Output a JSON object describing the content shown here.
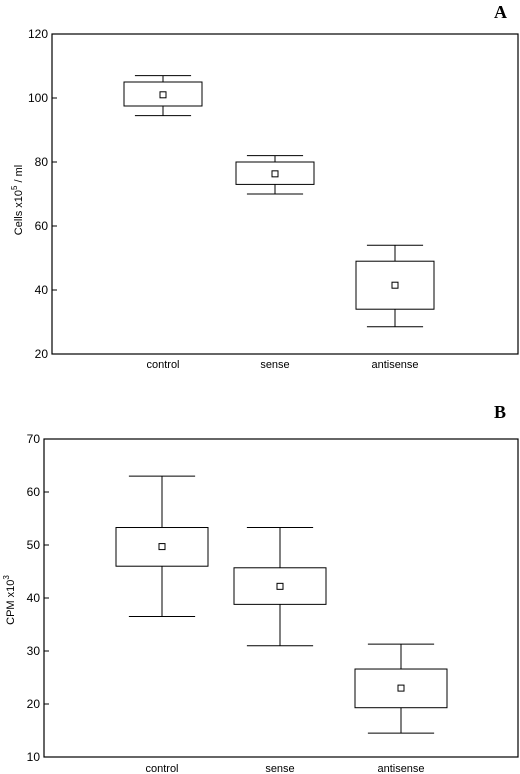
{
  "chart_data": [
    {
      "type": "box",
      "panel_label": "A",
      "ylabel": {
        "text": "Cells x10",
        "sup": "5",
        "suffix": "/ ml"
      },
      "ylim": [
        20,
        120
      ],
      "yticks": [
        20,
        40,
        60,
        80,
        100,
        120
      ],
      "grid": false,
      "categories": [
        "control",
        "sense",
        "antisense"
      ],
      "boxes": [
        {
          "category": "control",
          "whisker_low": 94.5,
          "q1": 97.5,
          "center": 101.0,
          "q3": 105.0,
          "whisker_high": 107.0
        },
        {
          "category": "sense",
          "whisker_low": 70.0,
          "q1": 73.0,
          "center": 76.3,
          "q3": 80.0,
          "whisker_high": 82.0
        },
        {
          "category": "antisense",
          "whisker_low": 28.5,
          "q1": 34.0,
          "center": 41.5,
          "q3": 49.0,
          "whisker_high": 54.0
        }
      ]
    },
    {
      "type": "box",
      "panel_label": "B",
      "ylabel": {
        "text": "CPM x10",
        "sup": "3",
        "suffix": ""
      },
      "ylim": [
        10,
        70
      ],
      "yticks": [
        10,
        20,
        30,
        40,
        50,
        60,
        70
      ],
      "grid": false,
      "categories": [
        "control",
        "sense",
        "antisense"
      ],
      "boxes": [
        {
          "category": "control",
          "whisker_low": 36.5,
          "q1": 46.0,
          "center": 49.7,
          "q3": 53.3,
          "whisker_high": 63.0
        },
        {
          "category": "sense",
          "whisker_low": 31.0,
          "q1": 38.8,
          "center": 42.2,
          "q3": 45.7,
          "whisker_high": 53.3
        },
        {
          "category": "antisense",
          "whisker_low": 14.5,
          "q1": 19.3,
          "center": 23.0,
          "q3": 26.6,
          "whisker_high": 31.3
        }
      ]
    }
  ]
}
